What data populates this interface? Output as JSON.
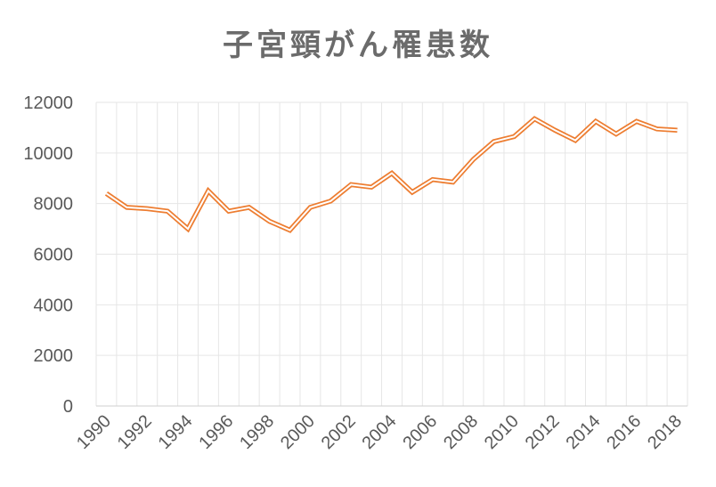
{
  "chart_data": {
    "type": "line",
    "title": "子宮頸がん罹患数",
    "xlabel": "",
    "ylabel": "",
    "ylim": [
      0,
      12000
    ],
    "yticks": [
      0,
      2000,
      4000,
      6000,
      8000,
      10000,
      12000
    ],
    "xtick_labels": [
      "1990",
      "1992",
      "1994",
      "1996",
      "1998",
      "2000",
      "2002",
      "2004",
      "2006",
      "2008",
      "2010",
      "2012",
      "2014",
      "2016",
      "2018"
    ],
    "x": [
      1990,
      1991,
      1992,
      1993,
      1994,
      1995,
      1996,
      1997,
      1998,
      1999,
      2000,
      2001,
      2002,
      2003,
      2004,
      2005,
      2006,
      2007,
      2008,
      2009,
      2010,
      2011,
      2012,
      2013,
      2014,
      2015,
      2016,
      2017,
      2018
    ],
    "series": [
      {
        "values": [
          8400,
          7850,
          7800,
          7700,
          7000,
          8500,
          7700,
          7850,
          7300,
          6950,
          7850,
          8100,
          8750,
          8650,
          9200,
          8450,
          8950,
          8850,
          9750,
          10450,
          10650,
          11350,
          10900,
          10500,
          11250,
          10750,
          11250,
          10950,
          10900
        ],
        "color": "#ed7d31"
      }
    ],
    "grid": true,
    "legend": "none"
  }
}
